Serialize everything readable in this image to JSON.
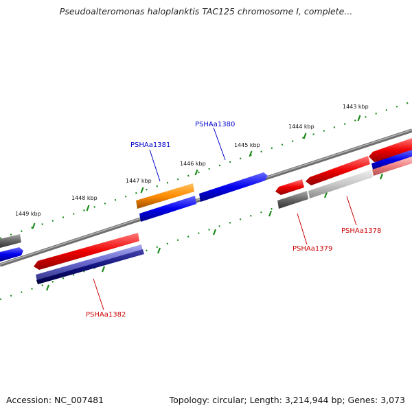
{
  "title": "Pseudoalteromonas haloplanktis TAC125 chromosome I, complete...",
  "footer": {
    "accession": "Accession: NC_007481",
    "summary": "Topology: circular; Length: 3,214,944 bp; Genes: 3,073"
  },
  "kbp_labels": [
    "1443 kbp",
    "1444 kbp",
    "1445 kbp",
    "1446 kbp",
    "1447 kbp",
    "1448 kbp",
    "1449 kbp"
  ],
  "gene_labels": {
    "PSHAa1378": "PSHAa1378",
    "PSHAa1379": "PSHAa1379",
    "PSHAa1380": "PSHAa1380",
    "PSHAa1381": "PSHAa1381",
    "PSHAa1382": "PSHAa1382"
  },
  "colors": {
    "forward_label": "#0000cc",
    "reverse_label": "#cc0000",
    "tick": "#1a8a1a",
    "backbone": "#808080"
  }
}
